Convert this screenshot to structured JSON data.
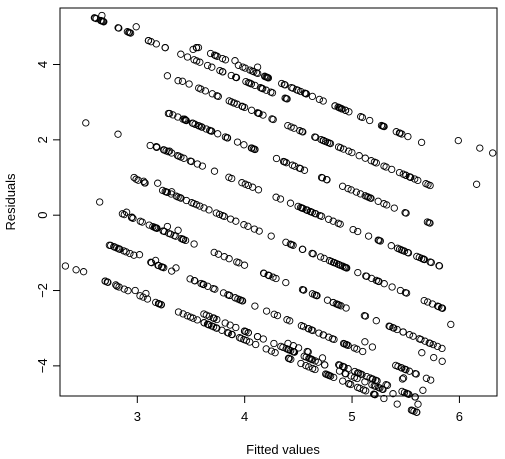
{
  "chart_data": {
    "type": "scatter",
    "title": "",
    "xlabel": "Fitted values",
    "ylabel": "Residuals",
    "xlim": [
      2.28,
      6.35
    ],
    "ylim": [
      -4.8,
      5.5
    ],
    "x_ticks": [
      3,
      4,
      5,
      6
    ],
    "y_ticks": [
      -4,
      -2,
      0,
      2,
      4
    ],
    "x_tick_labels": [
      "3",
      "4",
      "5",
      "6"
    ],
    "y_tick_labels": [
      "−4",
      "−2",
      "0",
      "2",
      "4"
    ],
    "marker": "open-circle",
    "grid": false,
    "bands": [
      {
        "x": [
          2.55,
          4.4
        ],
        "y0": 5.3,
        "slope": -1.2
      },
      {
        "x": [
          3.55,
          5.8
        ],
        "y0": 4.45,
        "slope": -1.2
      },
      {
        "x": [
          3.3,
          5.75
        ],
        "y0": 3.7,
        "slope": -1.2
      },
      {
        "x": [
          3.3,
          5.75
        ],
        "y0": 2.7,
        "slope": -1.2
      },
      {
        "x": [
          3.15,
          5.85
        ],
        "y0": 1.85,
        "slope": -1.2
      },
      {
        "x": [
          2.95,
          5.85
        ],
        "y0": 1.0,
        "slope": -1.2
      },
      {
        "x": [
          2.85,
          5.85
        ],
        "y0": 0.05,
        "slope": -1.2
      },
      {
        "x": [
          2.75,
          5.75
        ],
        "y0": -0.8,
        "slope": -1.2
      },
      {
        "x": [
          2.7,
          5.8
        ],
        "y0": -1.75,
        "slope": -1.2
      },
      {
        "x": [
          3.6,
          5.7
        ],
        "y0": -2.6,
        "slope": -1.2
      },
      {
        "x": [
          4.4,
          5.7
        ],
        "y0": -3.4,
        "slope": -1.2
      }
    ],
    "points": [
      [
        2.33,
        -1.35
      ],
      [
        2.43,
        -1.45
      ],
      [
        2.5,
        -1.5
      ],
      [
        2.65,
        0.35
      ],
      [
        2.52,
        2.45
      ],
      [
        2.67,
        5.3
      ],
      [
        2.99,
        5.0
      ],
      [
        2.82,
        2.15
      ],
      [
        3.57,
        4.45
      ],
      [
        3.52,
        4.4
      ],
      [
        3.38,
        3.57
      ],
      [
        3.28,
        3.7
      ],
      [
        3.72,
        4.25
      ],
      [
        3.91,
        4.1
      ],
      [
        4.12,
        3.93
      ],
      [
        3.29,
        2.7
      ],
      [
        3.44,
        2.55
      ],
      [
        3.3,
        1.7
      ],
      [
        3.32,
        1.65
      ],
      [
        3.12,
        1.85
      ],
      [
        3.18,
        1.8
      ],
      [
        2.97,
        1.0
      ],
      [
        3.06,
        0.9
      ],
      [
        3.19,
        0.85
      ],
      [
        3.32,
        0.62
      ],
      [
        2.9,
        0.08
      ],
      [
        2.95,
        -0.05
      ],
      [
        3.28,
        -0.3
      ],
      [
        3.38,
        -0.4
      ],
      [
        2.74,
        -0.8
      ],
      [
        2.79,
        -0.85
      ],
      [
        3.02,
        -1.05
      ],
      [
        3.17,
        -1.2
      ],
      [
        3.36,
        -1.4
      ],
      [
        2.7,
        -1.75
      ],
      [
        2.8,
        -1.85
      ],
      [
        2.98,
        -2.0
      ],
      [
        3.08,
        -2.08
      ],
      [
        5.99,
        1.98
      ],
      [
        6.19,
        1.78
      ],
      [
        6.31,
        1.65
      ],
      [
        6.16,
        0.82
      ],
      [
        5.92,
        -2.9
      ],
      [
        5.84,
        -3.88
      ],
      [
        5.76,
        -3.78
      ],
      [
        5.65,
        -3.65
      ],
      [
        5.66,
        -4.65
      ],
      [
        5.47,
        -4.35
      ],
      [
        5.48,
        -4.32
      ],
      [
        5.19,
        -3.5
      ],
      [
        5.12,
        -3.36
      ]
    ]
  }
}
